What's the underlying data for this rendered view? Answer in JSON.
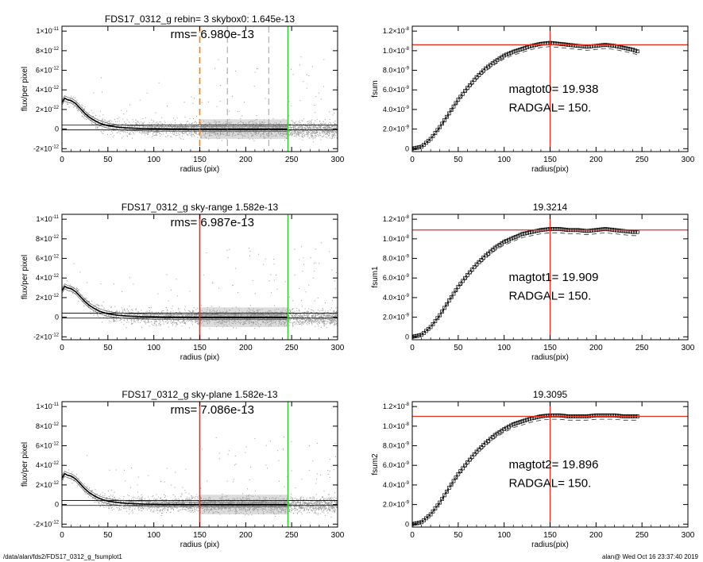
{
  "footer": {
    "left": "/data/alan/fds2/FDS17_0312_g_fsumplot1",
    "right": "alan@  Wed Oct 16 23:37:40 2019"
  },
  "colors": {
    "scatter": "#9a9a9a",
    "profile": "#000000",
    "red": "#e0301e",
    "green": "#33cc33",
    "orange": "#ff8000",
    "dashed_gray": "#888888"
  },
  "chart_data": [
    {
      "type": "scatter",
      "title": "FDS17_0312_g rebin= 3    skybox0:  1.645e-13",
      "annotation": "rms= 6.980e-13",
      "xlabel": "radius (pix)",
      "ylabel": "flux/per pixel",
      "xlim": [
        0,
        300
      ],
      "ylim": [
        -2.3e-12,
        1.05e-11
      ],
      "xticks": [
        "0",
        "50",
        "100",
        "150",
        "200",
        "250",
        "300"
      ],
      "yticks": [
        {
          "value": -2e-12,
          "mant": "-2",
          "exp": "-12"
        },
        {
          "value": 0,
          "mant": "0",
          "exp": ""
        },
        {
          "value": 2e-12,
          "mant": "2",
          "exp": "-12"
        },
        {
          "value": 4e-12,
          "mant": "4",
          "exp": "-12"
        },
        {
          "value": 6e-12,
          "mant": "6",
          "exp": "-12"
        },
        {
          "value": 8e-12,
          "mant": "8",
          "exp": "-12"
        },
        {
          "value": 1e-11,
          "mant": "1",
          "exp": "-11"
        }
      ],
      "profile": {
        "x": [
          0,
          3,
          6,
          10,
          15,
          20,
          25,
          30,
          35,
          40,
          45,
          50,
          60,
          70,
          80,
          90,
          100,
          120,
          140,
          160,
          180,
          200,
          220,
          245
        ],
        "y": [
          2.7e-12,
          3.15e-12,
          3e-12,
          2.9e-12,
          2.6e-12,
          2.1e-12,
          1.6e-12,
          1.2e-12,
          9e-13,
          6.5e-13,
          4.8e-13,
          3.5e-13,
          2e-13,
          1.2e-13,
          8e-14,
          5e-14,
          3e-14,
          2e-14,
          1e-14,
          1e-14,
          0.0,
          0.0,
          1e-14,
          0.0
        ]
      },
      "sky_level": 1.645e-13,
      "vlines": [
        {
          "x": 150,
          "color": "orange",
          "style": "dashed"
        },
        {
          "x": 180,
          "color": "gray",
          "style": "dashed"
        },
        {
          "x": 225,
          "color": "gray",
          "style": "dashed"
        },
        {
          "x": 246,
          "color": "green",
          "style": "solid"
        }
      ]
    },
    {
      "type": "line",
      "title": "",
      "xlabel": "radius(pix)",
      "ylabel": "fsum",
      "xlim": [
        0,
        300
      ],
      "ylim": [
        -3e-10,
        1.25e-08
      ],
      "xticks": [
        "0",
        "50",
        "100",
        "150",
        "200",
        "250",
        "300"
      ],
      "yticks": [
        {
          "value": 0,
          "mant": "0",
          "exp": ""
        },
        {
          "value": 2e-09,
          "mant": "2.0×10",
          "exp": "-9"
        },
        {
          "value": 4e-09,
          "mant": "4.0×10",
          "exp": "-9"
        },
        {
          "value": 6e-09,
          "mant": "6.0×10",
          "exp": "-9"
        },
        {
          "value": 8e-09,
          "mant": "8.0×10",
          "exp": "-9"
        },
        {
          "value": 1e-08,
          "mant": "1.0×10",
          "exp": "-8"
        },
        {
          "value": 1.2e-08,
          "mant": "1.2×10",
          "exp": "-8"
        }
      ],
      "curve": {
        "x": [
          0,
          10,
          20,
          30,
          40,
          50,
          60,
          70,
          80,
          90,
          100,
          110,
          120,
          130,
          140,
          150,
          160,
          170,
          180,
          190,
          200,
          210,
          220,
          230,
          240,
          246
        ],
        "y": [
          0.0,
          2e-10,
          1e-09,
          2.2e-09,
          3.6e-09,
          5e-09,
          6.2e-09,
          7.3e-09,
          8.2e-09,
          8.9e-09,
          9.5e-09,
          9.9e-09,
          1.02e-08,
          1.05e-08,
          1.07e-08,
          1.08e-08,
          1.07e-08,
          1.06e-08,
          1.05e-08,
          1.04e-08,
          1.05e-08,
          1.06e-08,
          1.05e-08,
          1.03e-08,
          1.01e-08,
          9.9e-09
        ]
      },
      "hline": 1.06e-08,
      "vline": 150,
      "annotations": [
        "magtot0=  19.938",
        "RADGAL=    150."
      ]
    },
    {
      "type": "scatter",
      "title": "FDS17_0312_g sky-range  1.582e-13",
      "annotation": "rms= 6.987e-13",
      "xlabel": "radius (pix)",
      "ylabel": "flux/per pixel",
      "xlim": [
        0,
        300
      ],
      "ylim": [
        -2.3e-12,
        1.05e-11
      ],
      "xticks": [
        "0",
        "50",
        "100",
        "150",
        "200",
        "250",
        "300"
      ],
      "yticks": [
        {
          "value": -2e-12,
          "mant": "-2",
          "exp": "-12"
        },
        {
          "value": 0,
          "mant": "0",
          "exp": ""
        },
        {
          "value": 2e-12,
          "mant": "2",
          "exp": "-12"
        },
        {
          "value": 4e-12,
          "mant": "4",
          "exp": "-12"
        },
        {
          "value": 6e-12,
          "mant": "6",
          "exp": "-12"
        },
        {
          "value": 8e-12,
          "mant": "8",
          "exp": "-12"
        },
        {
          "value": 1e-11,
          "mant": "1",
          "exp": "-11"
        }
      ],
      "profile": {
        "x": [
          0,
          3,
          6,
          10,
          15,
          20,
          25,
          30,
          35,
          40,
          45,
          50,
          60,
          70,
          80,
          90,
          100,
          120,
          140,
          160,
          180,
          200,
          220,
          245
        ],
        "y": [
          2.7e-12,
          3.15e-12,
          3e-12,
          2.9e-12,
          2.6e-12,
          2.1e-12,
          1.6e-12,
          1.2e-12,
          9e-13,
          6.5e-13,
          4.8e-13,
          3.5e-13,
          2e-13,
          1.2e-13,
          8e-14,
          5e-14,
          3e-14,
          2e-14,
          1e-14,
          1e-14,
          0.0,
          0.0,
          1e-14,
          0.0
        ]
      },
      "sky_level": 1.582e-13,
      "vlines": [
        {
          "x": 150,
          "color": "red",
          "style": "solid"
        },
        {
          "x": 246,
          "color": "green",
          "style": "solid"
        }
      ]
    },
    {
      "type": "line",
      "title": "19.3214",
      "xlabel": "radius(pix)",
      "ylabel": "fsum1",
      "xlim": [
        0,
        300
      ],
      "ylim": [
        -3e-10,
        1.25e-08
      ],
      "xticks": [
        "0",
        "50",
        "100",
        "150",
        "200",
        "250",
        "300"
      ],
      "yticks": [
        {
          "value": 0,
          "mant": "0",
          "exp": ""
        },
        {
          "value": 2e-09,
          "mant": "2.0×10",
          "exp": "-9"
        },
        {
          "value": 4e-09,
          "mant": "4.0×10",
          "exp": "-9"
        },
        {
          "value": 6e-09,
          "mant": "6.0×10",
          "exp": "-9"
        },
        {
          "value": 8e-09,
          "mant": "8.0×10",
          "exp": "-9"
        },
        {
          "value": 1e-08,
          "mant": "1.0×10",
          "exp": "-8"
        },
        {
          "value": 1.2e-08,
          "mant": "1.2×10",
          "exp": "-8"
        }
      ],
      "curve": {
        "x": [
          0,
          10,
          20,
          30,
          40,
          50,
          60,
          70,
          80,
          90,
          100,
          110,
          120,
          130,
          140,
          150,
          160,
          170,
          180,
          190,
          200,
          210,
          220,
          230,
          240,
          246
        ],
        "y": [
          0.0,
          2e-10,
          1e-09,
          2.2e-09,
          3.7e-09,
          5.1e-09,
          6.3e-09,
          7.4e-09,
          8.3e-09,
          9.1e-09,
          9.7e-09,
          1.01e-08,
          1.05e-08,
          1.07e-08,
          1.09e-08,
          1.1e-08,
          1.1e-08,
          1.09e-08,
          1.09e-08,
          1.08e-08,
          1.09e-08,
          1.1e-08,
          1.09e-08,
          1.08e-08,
          1.07e-08,
          1.07e-08
        ]
      },
      "hline": 1.09e-08,
      "vline": 150,
      "annotations": [
        "magtot1=  19.909",
        "RADGAL=    150."
      ]
    },
    {
      "type": "scatter",
      "title": "FDS17_0312_g sky-plane  1.582e-13",
      "annotation": "rms= 7.086e-13",
      "xlabel": "radius (pix)",
      "ylabel": "flux/per pixel",
      "xlim": [
        0,
        300
      ],
      "ylim": [
        -2.3e-12,
        1.05e-11
      ],
      "xticks": [
        "0",
        "50",
        "100",
        "150",
        "200",
        "250",
        "300"
      ],
      "yticks": [
        {
          "value": -2e-12,
          "mant": "-2",
          "exp": "-12"
        },
        {
          "value": 0,
          "mant": "0",
          "exp": ""
        },
        {
          "value": 2e-12,
          "mant": "2",
          "exp": "-12"
        },
        {
          "value": 4e-12,
          "mant": "4",
          "exp": "-12"
        },
        {
          "value": 6e-12,
          "mant": "6",
          "exp": "-12"
        },
        {
          "value": 8e-12,
          "mant": "8",
          "exp": "-12"
        },
        {
          "value": 1e-11,
          "mant": "1",
          "exp": "-11"
        }
      ],
      "profile": {
        "x": [
          0,
          3,
          6,
          10,
          15,
          20,
          25,
          30,
          35,
          40,
          45,
          50,
          60,
          70,
          80,
          90,
          100,
          120,
          140,
          160,
          180,
          200,
          220,
          245
        ],
        "y": [
          2.7e-12,
          3.15e-12,
          3e-12,
          2.9e-12,
          2.6e-12,
          2.1e-12,
          1.6e-12,
          1.2e-12,
          9e-13,
          6.5e-13,
          4.8e-13,
          3.5e-13,
          2e-13,
          1.2e-13,
          8e-14,
          5e-14,
          3e-14,
          2e-14,
          1e-14,
          1e-14,
          0.0,
          0.0,
          1e-14,
          0.0
        ]
      },
      "sky_level": 1.582e-13,
      "vlines": [
        {
          "x": 150,
          "color": "red",
          "style": "solid"
        },
        {
          "x": 246,
          "color": "green",
          "style": "solid"
        }
      ]
    },
    {
      "type": "line",
      "title": "19.3095",
      "xlabel": "radius(pix)",
      "ylabel": "fsum2",
      "xlim": [
        0,
        300
      ],
      "ylim": [
        -3e-10,
        1.25e-08
      ],
      "xticks": [
        "0",
        "50",
        "100",
        "150",
        "200",
        "250",
        "300"
      ],
      "yticks": [
        {
          "value": 0,
          "mant": "0",
          "exp": ""
        },
        {
          "value": 2e-09,
          "mant": "2.0×10",
          "exp": "-9"
        },
        {
          "value": 4e-09,
          "mant": "4.0×10",
          "exp": "-9"
        },
        {
          "value": 6e-09,
          "mant": "6.0×10",
          "exp": "-9"
        },
        {
          "value": 8e-09,
          "mant": "8.0×10",
          "exp": "-9"
        },
        {
          "value": 1e-08,
          "mant": "1.0×10",
          "exp": "-8"
        },
        {
          "value": 1.2e-08,
          "mant": "1.2×10",
          "exp": "-8"
        }
      ],
      "curve": {
        "x": [
          0,
          10,
          20,
          30,
          40,
          50,
          60,
          70,
          80,
          90,
          100,
          110,
          120,
          130,
          140,
          150,
          160,
          170,
          180,
          190,
          200,
          210,
          220,
          230,
          240,
          246
        ],
        "y": [
          0.0,
          2e-10,
          1e-09,
          2.2e-09,
          3.7e-09,
          5.1e-09,
          6.3e-09,
          7.4e-09,
          8.3e-09,
          9.1e-09,
          9.7e-09,
          1.02e-08,
          1.05e-08,
          1.08e-08,
          1.1e-08,
          1.11e-08,
          1.11e-08,
          1.1e-08,
          1.1e-08,
          1.1e-08,
          1.11e-08,
          1.11e-08,
          1.11e-08,
          1.1e-08,
          1.1e-08,
          1.1e-08
        ]
      },
      "hline": 1.1e-08,
      "vline": 150,
      "annotations": [
        "magtot2=  19.896",
        "RADGAL=    150."
      ]
    }
  ]
}
